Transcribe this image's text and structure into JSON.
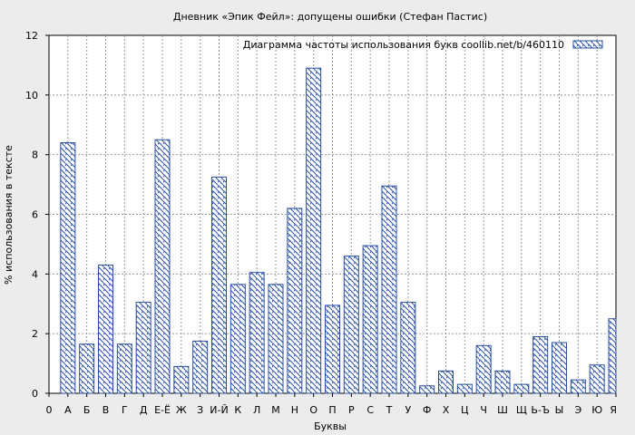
{
  "chart_data": {
    "type": "bar",
    "title": "Дневник «Эпик Фейл»: допущены ошибки (Стефан Пастис)",
    "xlabel": "Буквы",
    "ylabel": "% использования в тексте",
    "legend": {
      "label": "Диаграмма частоты использования букв  coollib.net/b/460110",
      "position": "top-right"
    },
    "ylim": [
      0,
      12
    ],
    "yticks": [
      0,
      2,
      4,
      6,
      8,
      10,
      12
    ],
    "grid": true,
    "categories": [
      "0",
      "А",
      "Б",
      "В",
      "Г",
      "Д",
      "Е-Ё",
      "Ж",
      "З",
      "И-Й",
      "К",
      "Л",
      "М",
      "Н",
      "О",
      "П",
      "Р",
      "С",
      "Т",
      "У",
      "Ф",
      "Х",
      "Ц",
      "Ч",
      "Ш",
      "Щ",
      "Ь-Ъ",
      "Ы",
      "Э",
      "Ю",
      "Я"
    ],
    "series": [
      {
        "values": [
          null,
          8.4,
          1.65,
          4.3,
          1.65,
          3.05,
          8.5,
          0.9,
          1.75,
          7.25,
          3.65,
          4.05,
          3.65,
          6.2,
          10.9,
          2.95,
          4.6,
          4.95,
          6.95,
          3.05,
          0.25,
          0.75,
          0.3,
          1.6,
          0.75,
          0.3,
          1.9,
          1.7,
          0.45,
          0.95,
          2.5
        ]
      }
    ],
    "colors": {
      "bar_stroke": "#2a4fa0",
      "hatch": "#2a4fa0",
      "plot_bg": "#ffffff",
      "page_bg": "#ececec",
      "grid": "#9a9a9a"
    }
  }
}
